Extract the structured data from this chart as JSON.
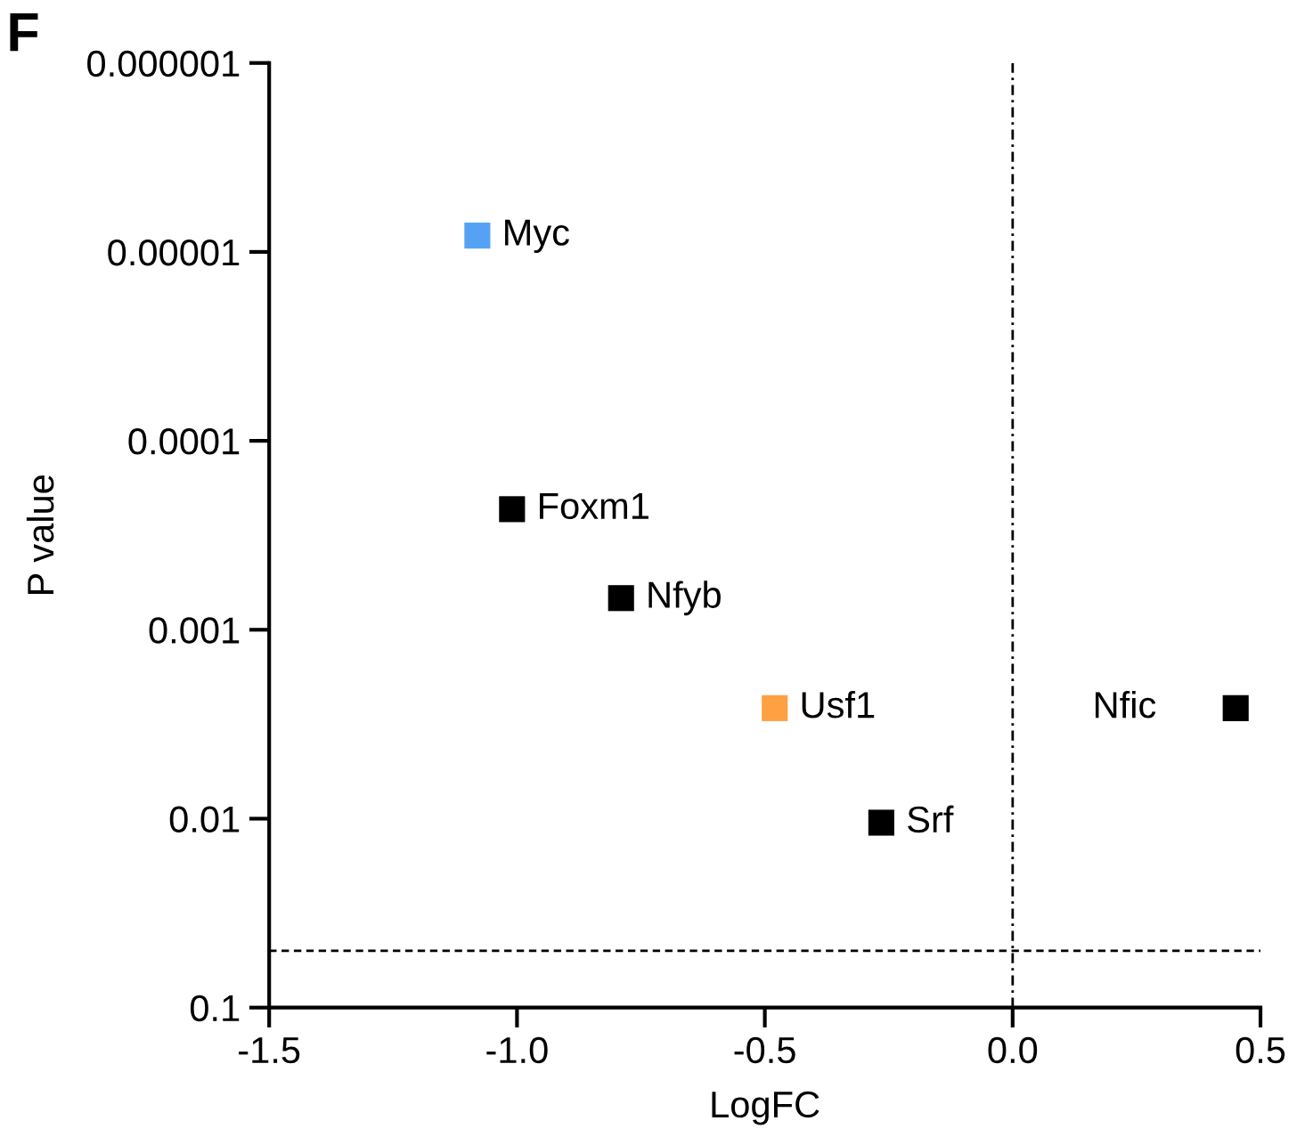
{
  "chart_data": {
    "type": "scatter",
    "title": "F",
    "xlabel": "LogFC",
    "ylabel": "P value",
    "log": "y",
    "marker": "square",
    "grid": false,
    "x": [
      -1.08,
      -1.01,
      -0.79,
      -0.48,
      -0.265,
      0.45
    ],
    "values": [
      8.2e-06,
      0.00023,
      0.00068,
      0.0026,
      0.0105,
      0.0026
    ],
    "colors": [
      "#55a2f5",
      "#000000",
      "#000000",
      "#ffa043",
      "#000000",
      "#000000"
    ],
    "annotations": [
      {
        "text": "Myc",
        "x": -1.08,
        "y": 8.2e-06
      },
      {
        "text": "Foxm1",
        "x": -1.01,
        "y": 0.00023
      },
      {
        "text": "Nfyb",
        "x": -0.79,
        "y": 0.00068
      },
      {
        "text": "Usf1",
        "x": -0.48,
        "y": 0.0026
      },
      {
        "text": "Srf",
        "x": -0.265,
        "y": 0.0105
      },
      {
        "text": "Nfic",
        "x": 0.45,
        "y": 0.0026
      }
    ],
    "ref_lines": [
      {
        "axis": "x",
        "value": 0.0,
        "line_style": "dashdot",
        "color": "#000000"
      },
      {
        "axis": "y",
        "value": 0.05,
        "line_style": "dashed",
        "color": "#000000"
      }
    ],
    "xlim": [
      -1.5,
      0.5
    ],
    "xticks": [
      {
        "value": -1.5,
        "label": "-1.5"
      },
      {
        "value": -1.0,
        "label": "-1.0"
      },
      {
        "value": -0.5,
        "label": "-0.5"
      },
      {
        "value": 0.0,
        "label": "0.0"
      },
      {
        "value": 0.5,
        "label": "0.5"
      }
    ],
    "ylim": [
      0.1,
      1e-06
    ],
    "yticks": [
      {
        "value": 1e-06,
        "label": "0.000001"
      },
      {
        "value": 1e-05,
        "label": "0.00001"
      },
      {
        "value": 0.0001,
        "label": "0.0001"
      },
      {
        "value": 0.001,
        "label": "0.001"
      },
      {
        "value": 0.01,
        "label": "0.01"
      },
      {
        "value": 0.1,
        "label": "0.1"
      }
    ]
  }
}
